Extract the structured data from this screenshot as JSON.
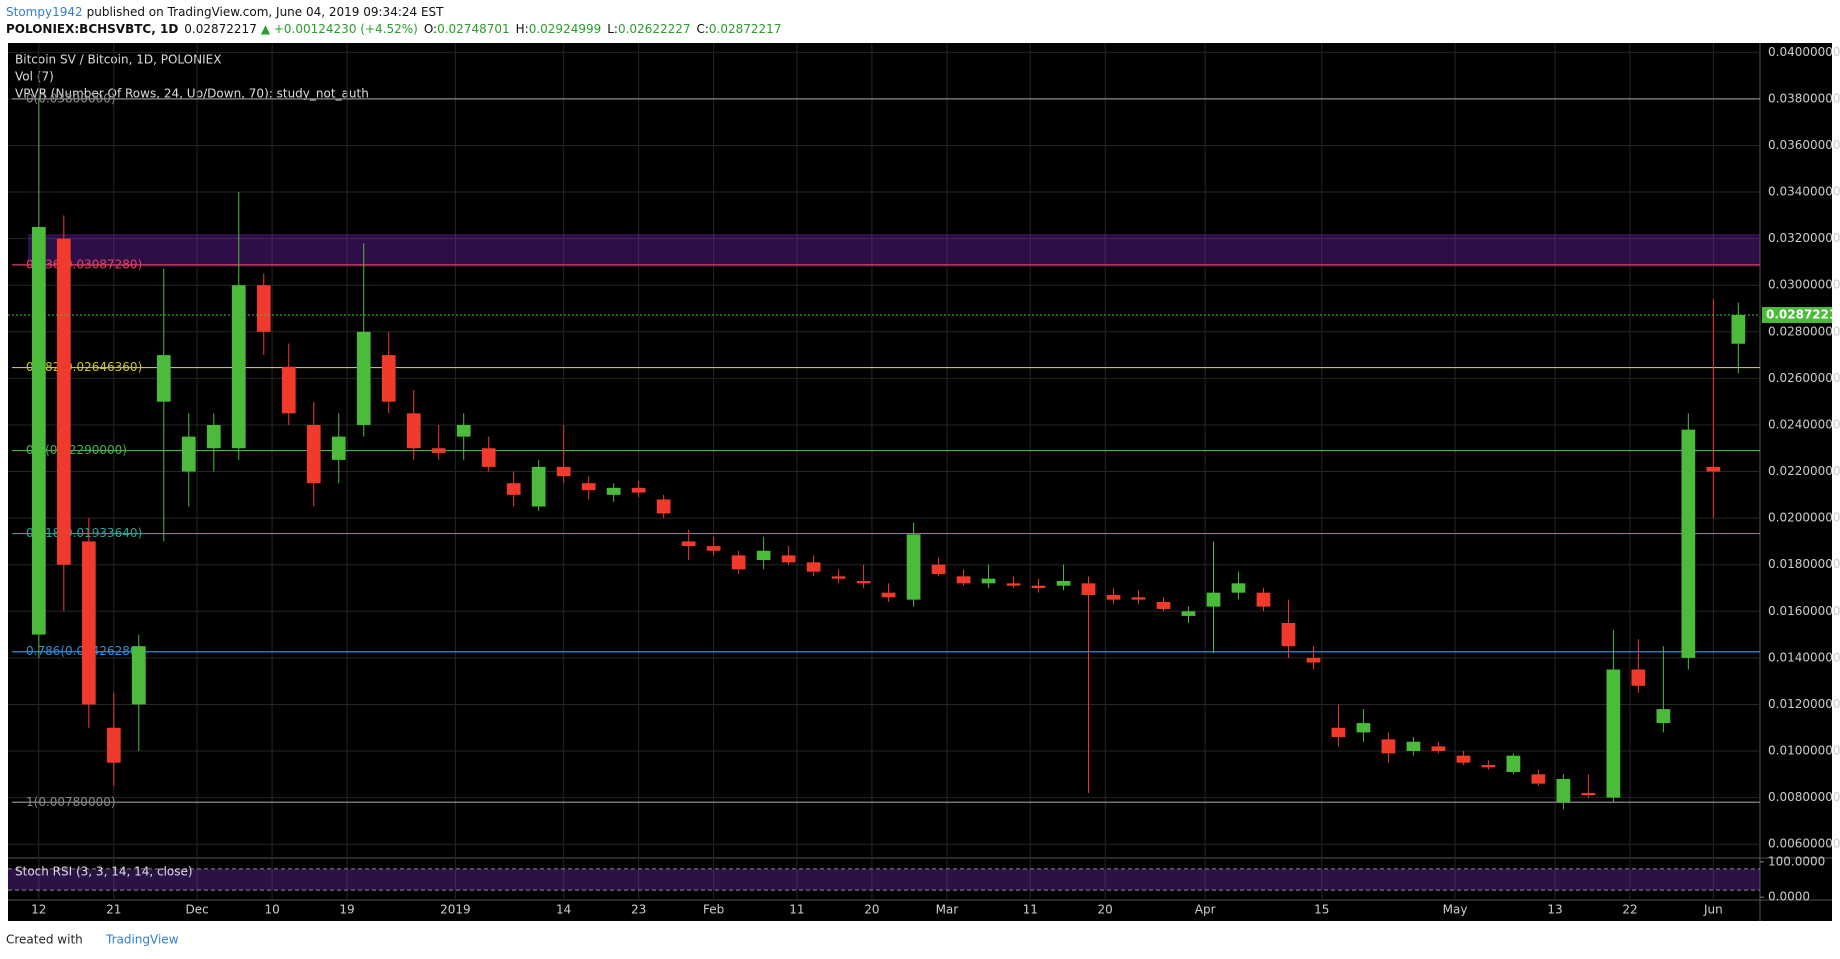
{
  "header": {
    "author": "Stompy1942",
    "published": "published on TradingView.com, June 04, 2019 09:34:24 EST",
    "symbol": "POLONIEX:BCHSVBTC, 1D",
    "price": "0.02872217",
    "change": "▲ +0.00124230 (+4.52%)",
    "ohlc": [
      {
        "key": "O:",
        "value": "0.02748701"
      },
      {
        "key": "H:",
        "value": "0.02924999"
      },
      {
        "key": "L:",
        "value": "0.02622227"
      },
      {
        "key": "C:",
        "value": "0.02872217"
      }
    ]
  },
  "legend": [
    "Vol (7)",
    "VPVR (Number Of Rows, 24, Up/Down, 70): study_not_auth"
  ],
  "footer": {
    "text": "Created with",
    "brand": "TradingView"
  },
  "chart_data": {
    "type": "candlestick",
    "title": "Bitcoin SV / Bitcoin, 1D, POLONIEX",
    "x": [
      0,
      3,
      6,
      9,
      12,
      15,
      18,
      21,
      24,
      27,
      30,
      33,
      36,
      39,
      42,
      45,
      48,
      51,
      54,
      57,
      60,
      63,
      66,
      69,
      72,
      75,
      78,
      81,
      84,
      87,
      90,
      93,
      96,
      99,
      102,
      105,
      108,
      111,
      114,
      117,
      120,
      123,
      126,
      129,
      132,
      135,
      138,
      141,
      144,
      147,
      150,
      153,
      156,
      159,
      162,
      165,
      168,
      171,
      174,
      177,
      180,
      183,
      186,
      189,
      192,
      195,
      198,
      201,
      204
    ],
    "open": [
      0.015,
      0.032,
      0.019,
      0.011,
      0.012,
      0.025,
      0.022,
      0.023,
      0.023,
      0.03,
      0.0265,
      0.024,
      0.0225,
      0.024,
      0.027,
      0.0245,
      0.023,
      0.0235,
      0.023,
      0.0215,
      0.0205,
      0.0222,
      0.0215,
      0.021,
      0.0213,
      0.0208,
      0.019,
      0.0188,
      0.0184,
      0.0182,
      0.0184,
      0.0181,
      0.0175,
      0.0173,
      0.0168,
      0.0165,
      0.018,
      0.0175,
      0.0172,
      0.0172,
      0.0171,
      0.0171,
      0.0172,
      0.0167,
      0.0166,
      0.0164,
      0.0158,
      0.0162,
      0.0168,
      0.0168,
      0.0155,
      0.014,
      0.011,
      0.0108,
      0.0105,
      0.01,
      0.0102,
      0.0098,
      0.0094,
      0.0091,
      0.009,
      0.0078,
      0.0082,
      0.008,
      0.0135,
      0.0112,
      0.014,
      0.0222,
      0.02748701
    ],
    "high": [
      0.038,
      0.033,
      0.02,
      0.0125,
      0.015,
      0.0307,
      0.0245,
      0.0245,
      0.034,
      0.0305,
      0.0275,
      0.025,
      0.0245,
      0.0318,
      0.028,
      0.0255,
      0.024,
      0.0245,
      0.0235,
      0.022,
      0.0225,
      0.024,
      0.0218,
      0.0215,
      0.0216,
      0.021,
      0.0195,
      0.0192,
      0.0186,
      0.0192,
      0.0188,
      0.0184,
      0.0178,
      0.018,
      0.0172,
      0.0198,
      0.0183,
      0.0178,
      0.018,
      0.0175,
      0.0174,
      0.018,
      0.0175,
      0.017,
      0.0169,
      0.0166,
      0.0162,
      0.019,
      0.0177,
      0.017,
      0.0165,
      0.0145,
      0.012,
      0.0118,
      0.0108,
      0.0106,
      0.0104,
      0.01,
      0.0096,
      0.0099,
      0.0092,
      0.009,
      0.009,
      0.0152,
      0.0148,
      0.0145,
      0.0245,
      0.0294,
      0.02924999
    ],
    "low": [
      0.014,
      0.016,
      0.011,
      0.0085,
      0.01,
      0.019,
      0.0205,
      0.022,
      0.0225,
      0.027,
      0.024,
      0.0205,
      0.0215,
      0.0235,
      0.0245,
      0.0225,
      0.0225,
      0.0225,
      0.022,
      0.0205,
      0.0203,
      0.0215,
      0.0208,
      0.0207,
      0.0209,
      0.02,
      0.0182,
      0.0184,
      0.0176,
      0.0178,
      0.018,
      0.0175,
      0.0172,
      0.017,
      0.0164,
      0.0162,
      0.0175,
      0.0171,
      0.017,
      0.017,
      0.0168,
      0.0169,
      0.0082,
      0.0163,
      0.0163,
      0.016,
      0.0155,
      0.0142,
      0.0165,
      0.016,
      0.014,
      0.0135,
      0.0102,
      0.0104,
      0.0095,
      0.0098,
      0.0099,
      0.0094,
      0.0092,
      0.009,
      0.0085,
      0.0075,
      0.008,
      0.0078,
      0.0125,
      0.0108,
      0.0135,
      0.02,
      0.02622227
    ],
    "close": [
      0.0325,
      0.018,
      0.012,
      0.0095,
      0.0145,
      0.027,
      0.0235,
      0.024,
      0.03,
      0.028,
      0.0245,
      0.0215,
      0.0235,
      0.028,
      0.025,
      0.023,
      0.0228,
      0.024,
      0.0222,
      0.021,
      0.0222,
      0.0218,
      0.0212,
      0.0213,
      0.0211,
      0.0202,
      0.0188,
      0.0186,
      0.0178,
      0.0186,
      0.0181,
      0.0177,
      0.0174,
      0.0172,
      0.0166,
      0.0193,
      0.0176,
      0.0172,
      0.0174,
      0.0171,
      0.017,
      0.0173,
      0.0167,
      0.0165,
      0.0165,
      0.0161,
      0.016,
      0.0168,
      0.0172,
      0.0162,
      0.0145,
      0.0138,
      0.0106,
      0.0112,
      0.0099,
      0.0104,
      0.01,
      0.0095,
      0.0093,
      0.0098,
      0.0086,
      0.0088,
      0.0081,
      0.0135,
      0.0128,
      0.0118,
      0.0238,
      0.022,
      0.02872217
    ],
    "up_color": "#4cbb3c",
    "down_color": "#f03a2b",
    "xlim": [
      -3.7,
      206.6
    ],
    "xticks": [
      {
        "value": 0,
        "label": "12"
      },
      {
        "value": 9,
        "label": "21"
      },
      {
        "value": 19,
        "label": "Dec"
      },
      {
        "value": 28,
        "label": "10"
      },
      {
        "value": 37,
        "label": "19"
      },
      {
        "value": 50,
        "label": "2019"
      },
      {
        "value": 63,
        "label": "14"
      },
      {
        "value": 72,
        "label": "23"
      },
      {
        "value": 81,
        "label": "Feb"
      },
      {
        "value": 91,
        "label": "11"
      },
      {
        "value": 100,
        "label": "20"
      },
      {
        "value": 109,
        "label": "Mar"
      },
      {
        "value": 119,
        "label": "11"
      },
      {
        "value": 128,
        "label": "20"
      },
      {
        "value": 140,
        "label": "Apr"
      },
      {
        "value": 154,
        "label": "15"
      },
      {
        "value": 170,
        "label": "May"
      },
      {
        "value": 182,
        "label": "13"
      },
      {
        "value": 191,
        "label": "22"
      },
      {
        "value": 201,
        "label": "Jun"
      }
    ],
    "ylim": [
      0.00545,
      0.0404
    ],
    "yticks": [
      {
        "value": 0.006,
        "label": "0.00600000"
      },
      {
        "value": 0.008,
        "label": "0.00800000"
      },
      {
        "value": 0.01,
        "label": "0.01000000"
      },
      {
        "value": 0.012,
        "label": "0.01200000"
      },
      {
        "value": 0.014,
        "label": "0.01400000"
      },
      {
        "value": 0.016,
        "label": "0.01600000"
      },
      {
        "value": 0.018,
        "label": "0.01800000"
      },
      {
        "value": 0.02,
        "label": "0.02000000"
      },
      {
        "value": 0.022,
        "label": "0.02200000"
      },
      {
        "value": 0.024,
        "label": "0.02400000"
      },
      {
        "value": 0.026,
        "label": "0.02600000"
      },
      {
        "value": 0.028,
        "label": "0.02800000"
      },
      {
        "value": 0.03,
        "label": "0.03000000"
      },
      {
        "value": 0.032,
        "label": "0.03200000"
      },
      {
        "value": 0.034,
        "label": "0.03400000"
      },
      {
        "value": 0.036,
        "label": "0.03600000"
      },
      {
        "value": 0.038,
        "label": "0.03800000"
      },
      {
        "value": 0.04,
        "label": "0.04000000"
      }
    ],
    "grid": true,
    "fib_levels": [
      {
        "value": 0.038,
        "label": "0(0.03800000)",
        "color": "#8a8a8a"
      },
      {
        "value": 0.0308728,
        "label": "0.236(0.03087280)",
        "color": "#e0405a"
      },
      {
        "value": 0.0264636,
        "label": "0.382(0.02646360)",
        "color": "#c8c820"
      },
      {
        "value": 0.0229,
        "label": "0.5(0.02290000)",
        "color": "#4caf50"
      },
      {
        "value": 0.0193364,
        "label": "0.618(0.01933640)",
        "color": "#26a69a"
      },
      {
        "value": 0.0142628,
        "label": "0.786(0.01426280)",
        "color": "#2f8fd8"
      },
      {
        "value": 0.0078,
        "label": "1(0.00780000)",
        "color": "#8a8a8a"
      }
    ],
    "zone": [
      0.0308,
      0.0322
    ],
    "last_price": {
      "value": 0.02872217,
      "label": "0.02872217"
    },
    "stoch": {
      "title": "Stoch RSI (3, 3, 14, 14, close)",
      "ylim": [
        -8,
        108
      ],
      "yticks": [
        {
          "value": 100,
          "label": "100.0000"
        },
        {
          "value": 0,
          "label": "0.0000"
        }
      ],
      "band": [
        20,
        80
      ]
    }
  }
}
